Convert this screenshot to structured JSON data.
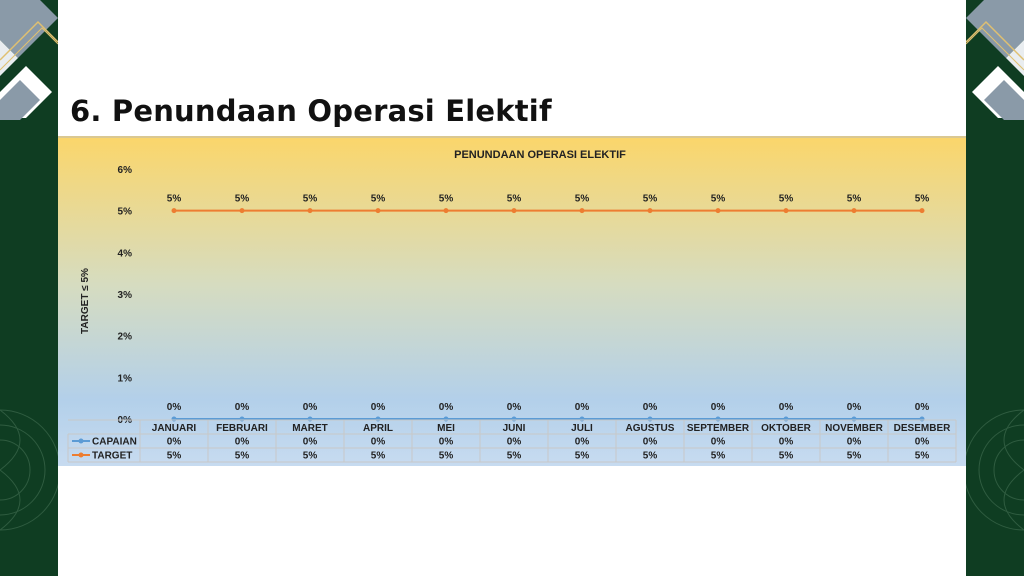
{
  "slide": {
    "title": "6. Penundaan Operasi Elektif"
  },
  "theme": {
    "side_color": "#0f3d22",
    "accent_gray": "#8a9aa8",
    "accent_gold": "#e0c070"
  },
  "chart_data": {
    "type": "line",
    "title": "PENUNDAAN OPERASI ELEKTIF",
    "ylabel": "TARGET ≤ 5%",
    "xlabel": "",
    "categories": [
      "JANUARI",
      "FEBRUARI",
      "MARET",
      "APRIL",
      "MEI",
      "JUNI",
      "JULI",
      "AGUSTUS",
      "SEPTEMBER",
      "OKTOBER",
      "NOVEMBER",
      "DESEMBER"
    ],
    "ylim": [
      0,
      6
    ],
    "yticks": [
      "0%",
      "1%",
      "2%",
      "3%",
      "4%",
      "5%",
      "6%"
    ],
    "series": [
      {
        "name": "CAPAIAN",
        "color": "#5b9bd5",
        "values": [
          0,
          0,
          0,
          0,
          0,
          0,
          0,
          0,
          0,
          0,
          0,
          0
        ],
        "labels": [
          "0%",
          "0%",
          "0%",
          "0%",
          "0%",
          "0%",
          "0%",
          "0%",
          "0%",
          "0%",
          "0%",
          "0%"
        ]
      },
      {
        "name": "TARGET",
        "color": "#ed7d31",
        "values": [
          5,
          5,
          5,
          5,
          5,
          5,
          5,
          5,
          5,
          5,
          5,
          5
        ],
        "labels": [
          "5%",
          "5%",
          "5%",
          "5%",
          "5%",
          "5%",
          "5%",
          "5%",
          "5%",
          "5%",
          "5%",
          "5%"
        ]
      }
    ],
    "grid": false,
    "data_table": true,
    "background": "gradient-gold-to-blue"
  }
}
